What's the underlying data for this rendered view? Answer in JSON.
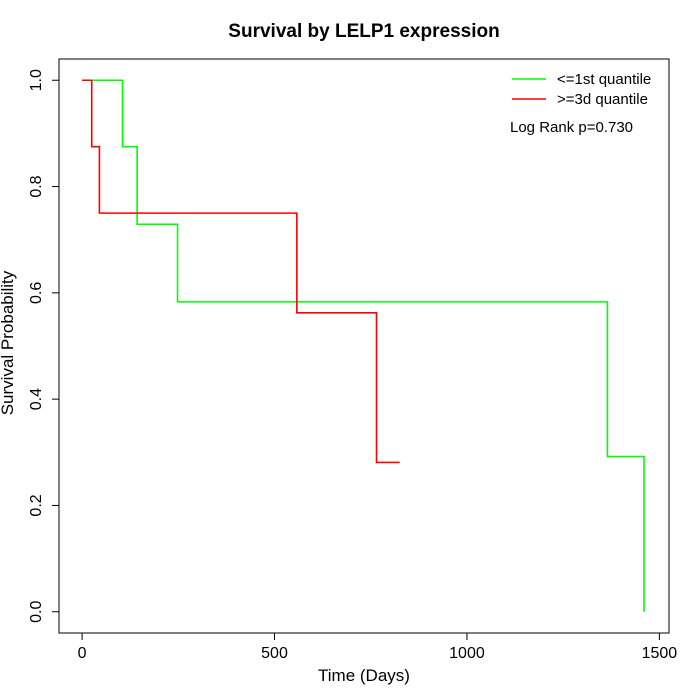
{
  "chart_data": {
    "type": "line",
    "title": "Survival by LELP1 expression",
    "xlabel": "Time (Days)",
    "ylabel": "Survival Probability",
    "xlim": [
      -60,
      1525
    ],
    "ylim": [
      -0.04,
      1.04
    ],
    "xticks": [
      0,
      500,
      1000,
      1500
    ],
    "yticks": [
      0.0,
      0.2,
      0.4,
      0.6,
      0.8,
      1.0
    ],
    "xtick_labels": [
      "0",
      "500",
      "1000",
      "1500"
    ],
    "ytick_labels": [
      "0.0",
      "0.2",
      "0.4",
      "0.6",
      "0.8",
      "1.0"
    ],
    "legend_position": "top-right",
    "grid": false,
    "annotation": "Log Rank p=0.730",
    "series": [
      {
        "name": "<=1st quantile",
        "color": "#00ff00",
        "steps": [
          [
            0,
            1.0
          ],
          [
            105,
            0.875
          ],
          [
            143,
            0.729
          ],
          [
            248,
            0.583
          ],
          [
            1365,
            0.292
          ],
          [
            1460,
            0.0
          ]
        ],
        "end_x": 1460
      },
      {
        "name": ">=3d quantile",
        "color": "#ff0000",
        "steps": [
          [
            0,
            1.0
          ],
          [
            25,
            0.875
          ],
          [
            45,
            0.75
          ],
          [
            558,
            0.5625
          ],
          [
            765,
            0.281
          ]
        ],
        "end_x": 825
      }
    ]
  }
}
